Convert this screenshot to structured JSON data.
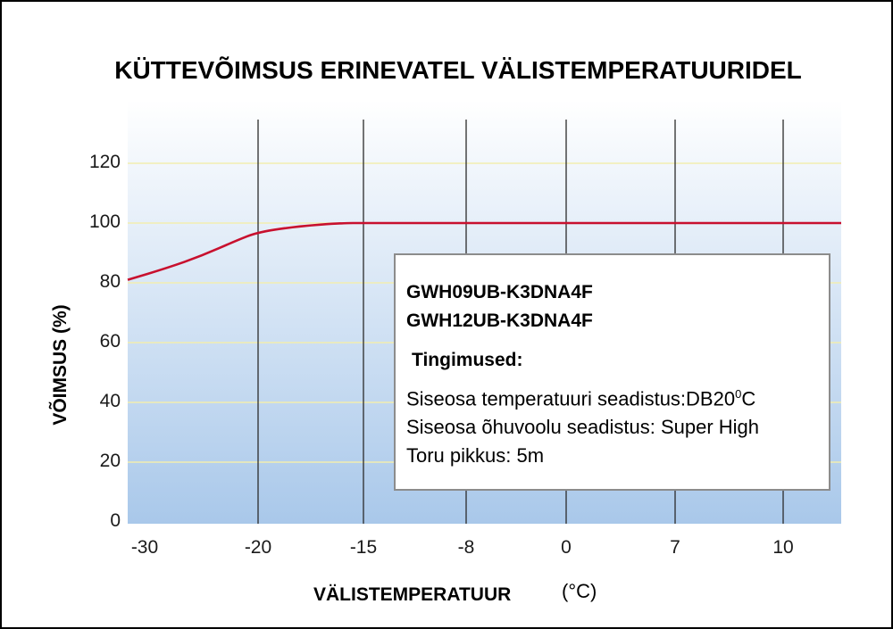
{
  "chart_data": {
    "type": "line",
    "title": "KÜTTEVÕIMSUS ERINEVATEL VÄLISTEMPERATUURIDEL",
    "xlabel": "VÄLISTEMPERATUUR",
    "xunit": "(°C)",
    "ylabel": "VÕIMSUS (%)",
    "x_ticks": [
      "-30",
      "-20",
      "-15",
      "-8",
      "0",
      "7",
      "10"
    ],
    "x_tick_values": [
      -30,
      -20,
      -15,
      -8,
      0,
      7,
      10
    ],
    "x_scale": "categorical (unevenly spaced tick labels)",
    "y_ticks": [
      "0",
      "20",
      "40",
      "60",
      "80",
      "100",
      "120"
    ],
    "ylim": [
      0,
      130
    ],
    "grid": true,
    "series": [
      {
        "color": "#c8102e",
        "points": [
          {
            "x": -31,
            "y": 81
          },
          {
            "x": -28,
            "y": 85
          },
          {
            "x": -25,
            "y": 89
          },
          {
            "x": -22,
            "y": 94
          },
          {
            "x": -20,
            "y": 97
          },
          {
            "x": -18,
            "y": 99
          },
          {
            "x": -16,
            "y": 100
          },
          {
            "x": -15,
            "y": 100
          },
          {
            "x": -8,
            "y": 100
          },
          {
            "x": 0,
            "y": 100
          },
          {
            "x": 7,
            "y": 100
          },
          {
            "x": 10,
            "y": 100
          },
          {
            "x": 12,
            "y": 100
          }
        ]
      }
    ],
    "annotations": {
      "models": [
        "GWH09UB-K3DNA4F",
        "GWH12UB-K3DNA4F"
      ],
      "conditions_title": "Tingimused:",
      "condition_indoor_temp": "Siseosa temperatuuri seadistus:DB20",
      "condition_indoor_temp_sup": "0",
      "condition_indoor_temp_suffix": "C",
      "condition_airflow": "Siseosa õhuvoolu seadistus: Super High",
      "condition_pipe": "Toru pikkus: 5m"
    }
  },
  "colors": {
    "background_top": "#ffffff",
    "background_bottom": "#a9c8ea",
    "line": "#c8102e",
    "vertical_grid": "#2b2b2b",
    "horizontal_grid": "#f2eeb0"
  }
}
